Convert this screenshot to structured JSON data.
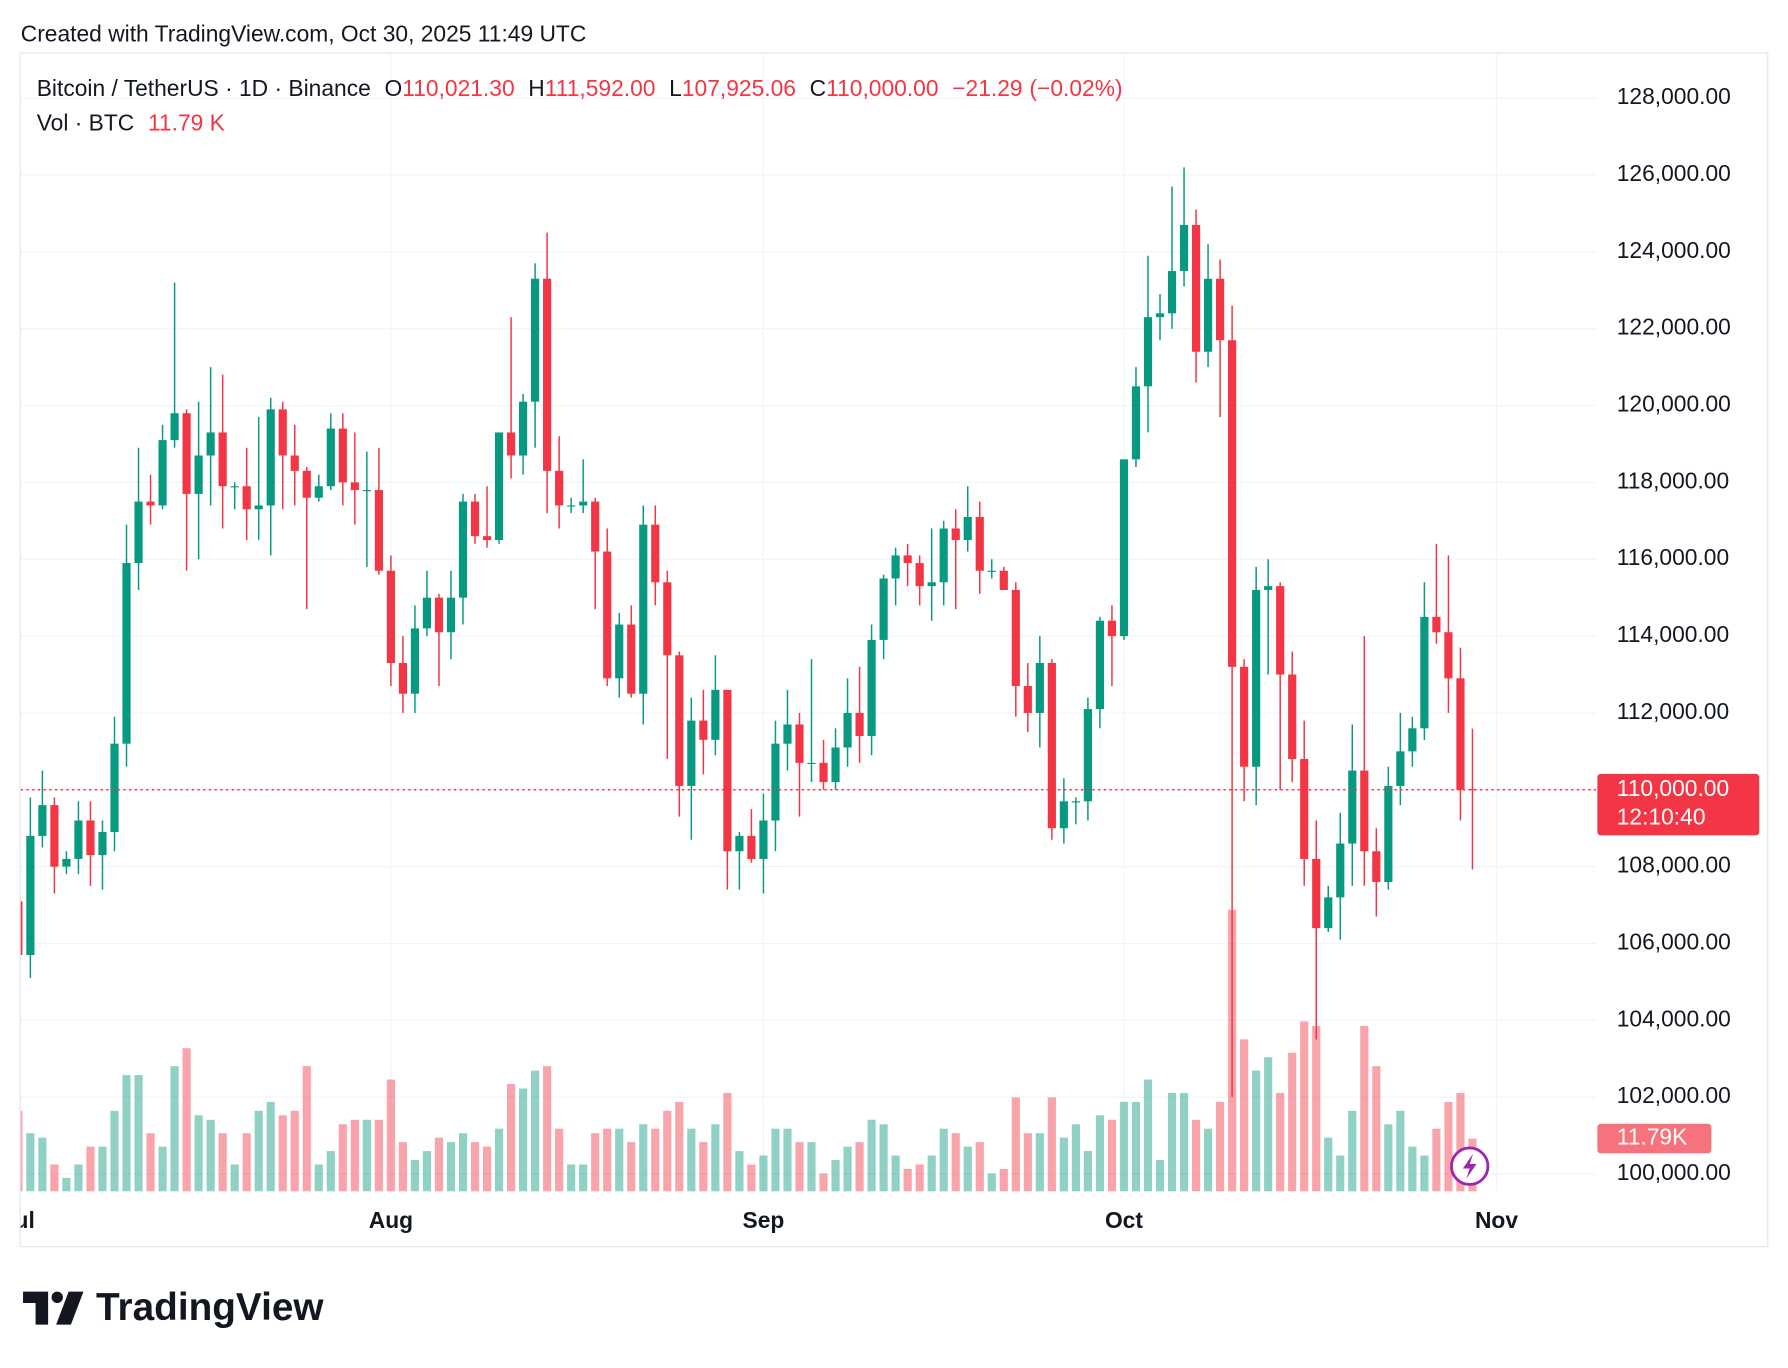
{
  "header": "Created with TradingView.com, Oct 30, 2025 11:49 UTC",
  "footer_logo": "TradingView",
  "chart_data": {
    "type": "candlestick",
    "legend": {
      "symbol": "Bitcoin / TetherUS · 1D · Binance",
      "ohlc": [
        {
          "key": "O",
          "value": 110021.3,
          "label": "110,021.30"
        },
        {
          "key": "H",
          "value": 111592,
          "label": "111,592.00"
        },
        {
          "key": "L",
          "value": 107925.06,
          "label": "107,925.06"
        },
        {
          "key": "C",
          "value": 110000,
          "label": "110,000.00"
        }
      ],
      "change": {
        "value": -21.29,
        "label": "−21.29"
      },
      "change_percent": {
        "value": -0.02,
        "label": "(−0.02%)"
      }
    },
    "colors": {
      "up": "#089981",
      "down": "#f23645"
    },
    "x": [
      0,
      1,
      2,
      3,
      4,
      5,
      6,
      7,
      8,
      9,
      10,
      11,
      12,
      13,
      14,
      15,
      16,
      17,
      18,
      19,
      20,
      21,
      22,
      23,
      24,
      25,
      26,
      27,
      28,
      29,
      30,
      31,
      32,
      33,
      34,
      35,
      36,
      37,
      38,
      39,
      40,
      41,
      42,
      43,
      44,
      45,
      46,
      47,
      48,
      49,
      50,
      51,
      52,
      53,
      54,
      55,
      56,
      57,
      58,
      59,
      60,
      61,
      62,
      63,
      64,
      65,
      66,
      67,
      68,
      69,
      70,
      71,
      72,
      73,
      74,
      75,
      76,
      77,
      78,
      79,
      80,
      81,
      82,
      83,
      84,
      85,
      86,
      87,
      88,
      89,
      90,
      91,
      92,
      93,
      94,
      95,
      96,
      97,
      98,
      99,
      100,
      101,
      102,
      103,
      104,
      105,
      106,
      107,
      108,
      109,
      110,
      111,
      112,
      113,
      114,
      115,
      116,
      117,
      118,
      119,
      120,
      121
    ],
    "open": [
      107100,
      105700,
      108800,
      109600,
      108000,
      108200,
      109200,
      108300,
      108900,
      111200,
      115900,
      117500,
      117400,
      119100,
      119800,
      117700,
      118700,
      119300,
      117900,
      117900,
      117300,
      117400,
      119900,
      118700,
      118300,
      117600,
      117900,
      119400,
      118000,
      117800,
      117800,
      115700,
      113300,
      112500,
      114200,
      115000,
      114100,
      115000,
      117500,
      116600,
      116500,
      119300,
      118700,
      120100,
      123300,
      118300,
      117400,
      117400,
      117500,
      116200,
      112900,
      114300,
      112500,
      116900,
      115400,
      113500,
      110100,
      111800,
      111300,
      112600,
      108400,
      108800,
      108200,
      109200,
      111200,
      111700,
      110700,
      110700,
      110200,
      111100,
      112000,
      111400,
      113900,
      115500,
      116100,
      115900,
      115300,
      115400,
      116800,
      116500,
      117100,
      115700,
      115700,
      115200,
      112700,
      112000,
      113300,
      109000,
      109700,
      109700,
      112100,
      114400,
      114000,
      118600,
      120500,
      122300,
      122400,
      123500,
      124700,
      121400,
      123300,
      121700,
      113200,
      110600,
      115200,
      115300,
      113000,
      110800,
      108200,
      106400,
      107200,
      108600,
      110500,
      108400,
      107600,
      110100,
      111000,
      111600,
      114500,
      114100,
      112900,
      110021.3
    ],
    "high": [
      107500,
      109800,
      110500,
      109800,
      108400,
      109700,
      109700,
      109200,
      111900,
      116900,
      118900,
      118200,
      119500,
      123200,
      119900,
      120100,
      121000,
      120800,
      118000,
      118900,
      119700,
      120200,
      120100,
      119500,
      118400,
      118200,
      119800,
      119800,
      119300,
      118800,
      118900,
      116100,
      114000,
      114800,
      115700,
      115100,
      115700,
      117700,
      117700,
      117900,
      119300,
      122300,
      120300,
      123700,
      124500,
      119200,
      117600,
      118600,
      117600,
      116800,
      114600,
      114800,
      117400,
      117400,
      115700,
      113600,
      112400,
      112600,
      113500,
      112600,
      108900,
      109500,
      109900,
      111800,
      112600,
      112000,
      113400,
      111300,
      111600,
      112900,
      113200,
      114300,
      115600,
      116300,
      116400,
      116100,
      116800,
      117000,
      117300,
      117900,
      117500,
      116000,
      115800,
      115400,
      113300,
      114000,
      113400,
      110300,
      109800,
      112400,
      114500,
      114800,
      118600,
      121000,
      123900,
      122900,
      125700,
      126200,
      125100,
      124200,
      123800,
      122600,
      113400,
      115800,
      116000,
      115400,
      113600,
      111800,
      109200,
      107500,
      109400,
      111700,
      114000,
      109000,
      110600,
      112000,
      111900,
      115400,
      116400,
      116100,
      113700,
      111592
    ],
    "low": [
      105300,
      105100,
      108500,
      107300,
      107800,
      107800,
      107500,
      107400,
      108400,
      110600,
      115200,
      116900,
      117300,
      118900,
      115700,
      116000,
      117400,
      116800,
      117300,
      116500,
      116500,
      116100,
      117300,
      117400,
      114700,
      117500,
      117800,
      117400,
      116900,
      115800,
      115600,
      112700,
      112000,
      112000,
      114000,
      112700,
      113400,
      114300,
      116400,
      116300,
      116400,
      118100,
      118200,
      118900,
      117200,
      116800,
      117200,
      117200,
      114700,
      112700,
      112400,
      112400,
      111700,
      114800,
      110800,
      109300,
      108700,
      110400,
      110900,
      107400,
      107400,
      108100,
      107300,
      108400,
      110500,
      109300,
      110200,
      110000,
      110000,
      110600,
      110700,
      110900,
      113400,
      114800,
      115300,
      114800,
      114400,
      114800,
      114700,
      116200,
      115100,
      115500,
      115200,
      111900,
      111500,
      111100,
      108700,
      108600,
      109100,
      109200,
      111600,
      112700,
      113900,
      118400,
      119300,
      121700,
      122000,
      123100,
      120600,
      121000,
      119700,
      102000,
      109700,
      109600,
      113000,
      110000,
      110200,
      107500,
      103500,
      106300,
      106100,
      107500,
      107500,
      106700,
      107400,
      109600,
      110600,
      111300,
      113800,
      112000,
      109200,
      107925.06
    ],
    "close": [
      105700,
      108800,
      109600,
      108000,
      108200,
      109200,
      108300,
      108900,
      111200,
      115900,
      117500,
      117400,
      119100,
      119800,
      117700,
      118700,
      119300,
      117900,
      117900,
      117300,
      117400,
      119900,
      118700,
      118300,
      117600,
      117900,
      119400,
      118000,
      117800,
      117800,
      115700,
      113300,
      112500,
      114200,
      115000,
      114100,
      115000,
      117500,
      116600,
      116500,
      119300,
      118700,
      120100,
      123300,
      118300,
      117400,
      117400,
      117500,
      116200,
      112900,
      114300,
      112500,
      116900,
      115400,
      113500,
      110100,
      111800,
      111300,
      112600,
      108400,
      108800,
      108200,
      109200,
      111200,
      111700,
      110700,
      110700,
      110200,
      111100,
      112000,
      111400,
      113900,
      115500,
      116100,
      115900,
      115300,
      115400,
      116800,
      116500,
      117100,
      115700,
      115700,
      115200,
      112700,
      112000,
      113300,
      109000,
      109700,
      109700,
      112100,
      114400,
      114000,
      118600,
      120500,
      122300,
      122400,
      123500,
      124700,
      121400,
      123300,
      121700,
      113200,
      110600,
      115200,
      115300,
      113000,
      110800,
      108200,
      106400,
      107200,
      108600,
      110500,
      108400,
      107600,
      110100,
      111000,
      111600,
      114500,
      114100,
      112900,
      110000,
      110000
    ],
    "volume": {
      "name": "Vol · BTC",
      "values": [
        18000,
        13000,
        12000,
        6000,
        3000,
        6000,
        10000,
        10000,
        18000,
        26000,
        26000,
        13000,
        10000,
        28000,
        32000,
        17000,
        16000,
        13000,
        6000,
        13000,
        18000,
        20000,
        17000,
        18000,
        28000,
        6000,
        9000,
        15000,
        16000,
        16000,
        16000,
        25000,
        11000,
        7000,
        9000,
        12000,
        11000,
        13000,
        11000,
        10000,
        14000,
        24000,
        23000,
        27000,
        28000,
        14000,
        6000,
        6000,
        13000,
        14000,
        14000,
        11000,
        15000,
        14000,
        18000,
        20000,
        14000,
        11000,
        15000,
        22000,
        9000,
        6000,
        8000,
        14000,
        14000,
        11000,
        11000,
        4000,
        7000,
        10000,
        11000,
        16000,
        15000,
        8000,
        5000,
        6000,
        8000,
        14000,
        13000,
        10000,
        11000,
        4000,
        5000,
        21000,
        13000,
        13000,
        21000,
        12000,
        15000,
        9000,
        17000,
        16000,
        20000,
        20000,
        25000,
        7000,
        22000,
        22000,
        16000,
        14000,
        20000,
        63000,
        34000,
        27000,
        30000,
        22000,
        31000,
        38000,
        37000,
        12000,
        8000,
        18000,
        37000,
        28000,
        15000,
        18000,
        10000,
        8000,
        14000,
        20000,
        22000,
        11790
      ],
      "last": {
        "value": 11790,
        "label": "11.79 K",
        "axis_label": "11.79K"
      }
    },
    "last_price": {
      "value": 110000,
      "label": "110,000.00",
      "countdown": "12:10:40"
    },
    "xlim": [
      0.2,
      131.3
    ],
    "xticks": [
      {
        "value": 0,
        "label": "Jul"
      },
      {
        "value": 31,
        "label": "Aug"
      },
      {
        "value": 62,
        "label": "Sep"
      },
      {
        "value": 92,
        "label": "Oct"
      },
      {
        "value": 123,
        "label": "Nov"
      }
    ],
    "ylim": [
      99550,
      129160
    ],
    "yticks": [
      {
        "value": 100000,
        "label": "100,000.00"
      },
      {
        "value": 102000,
        "label": "102,000.00"
      },
      {
        "value": 104000,
        "label": "104,000.00"
      },
      {
        "value": 106000,
        "label": "106,000.00"
      },
      {
        "value": 108000,
        "label": "108,000.00"
      },
      {
        "value": 110000,
        "label": "110,000.00"
      },
      {
        "value": 112000,
        "label": "112,000.00"
      },
      {
        "value": 114000,
        "label": "114,000.00"
      },
      {
        "value": 116000,
        "label": "116,000.00"
      },
      {
        "value": 118000,
        "label": "118,000.00"
      },
      {
        "value": 120000,
        "label": "120,000.00"
      },
      {
        "value": 122000,
        "label": "122,000.00"
      },
      {
        "value": 124000,
        "label": "124,000.00"
      },
      {
        "value": 126000,
        "label": "126,000.00"
      },
      {
        "value": 128000,
        "label": "128,000.00"
      }
    ],
    "grid": true
  }
}
